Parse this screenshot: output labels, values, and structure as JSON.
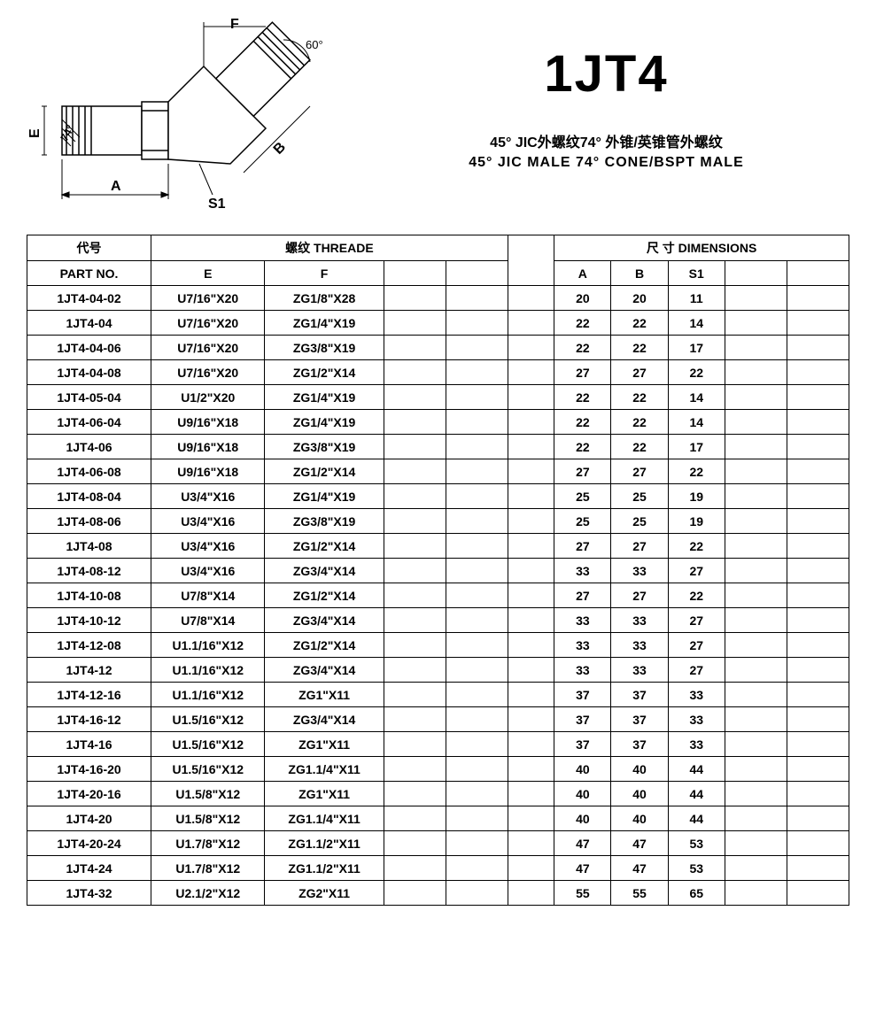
{
  "header": {
    "main_title": "1JT4",
    "subtitle_cn": "45° JIC外螺纹74° 外锥/英锥管外螺纹",
    "subtitle_en": "45° JIC MALE 74° CONE/BSPT MALE"
  },
  "diagram": {
    "labels": {
      "F": "F",
      "E": "E",
      "A": "A",
      "B": "B",
      "S1": "S1",
      "angle60": "60°",
      "angle74": "74°"
    },
    "line_color": "#000000"
  },
  "table": {
    "header1": {
      "part_cn": "代号",
      "thread": "螺纹 THREADE",
      "dimensions": "尺 寸 DIMENSIONS"
    },
    "header2": {
      "part_en": "PART NO.",
      "E": "E",
      "F": "F",
      "A": "A",
      "B": "B",
      "S1": "S1"
    },
    "rows": [
      {
        "part": "1JT4-04-02",
        "e": "U7/16\"X20",
        "f": "ZG1/8\"X28",
        "a": "20",
        "b": "20",
        "s1": "11"
      },
      {
        "part": "1JT4-04",
        "e": "U7/16\"X20",
        "f": "ZG1/4\"X19",
        "a": "22",
        "b": "22",
        "s1": "14"
      },
      {
        "part": "1JT4-04-06",
        "e": "U7/16\"X20",
        "f": "ZG3/8\"X19",
        "a": "22",
        "b": "22",
        "s1": "17"
      },
      {
        "part": "1JT4-04-08",
        "e": "U7/16\"X20",
        "f": "ZG1/2\"X14",
        "a": "27",
        "b": "27",
        "s1": "22"
      },
      {
        "part": "1JT4-05-04",
        "e": "U1/2\"X20",
        "f": "ZG1/4\"X19",
        "a": "22",
        "b": "22",
        "s1": "14"
      },
      {
        "part": "1JT4-06-04",
        "e": "U9/16\"X18",
        "f": "ZG1/4\"X19",
        "a": "22",
        "b": "22",
        "s1": "14"
      },
      {
        "part": "1JT4-06",
        "e": "U9/16\"X18",
        "f": "ZG3/8\"X19",
        "a": "22",
        "b": "22",
        "s1": "17"
      },
      {
        "part": "1JT4-06-08",
        "e": "U9/16\"X18",
        "f": "ZG1/2\"X14",
        "a": "27",
        "b": "27",
        "s1": "22"
      },
      {
        "part": "1JT4-08-04",
        "e": "U3/4\"X16",
        "f": "ZG1/4\"X19",
        "a": "25",
        "b": "25",
        "s1": "19"
      },
      {
        "part": "1JT4-08-06",
        "e": "U3/4\"X16",
        "f": "ZG3/8\"X19",
        "a": "25",
        "b": "25",
        "s1": "19"
      },
      {
        "part": "1JT4-08",
        "e": "U3/4\"X16",
        "f": "ZG1/2\"X14",
        "a": "27",
        "b": "27",
        "s1": "22"
      },
      {
        "part": "1JT4-08-12",
        "e": "U3/4\"X16",
        "f": "ZG3/4\"X14",
        "a": "33",
        "b": "33",
        "s1": "27"
      },
      {
        "part": "1JT4-10-08",
        "e": "U7/8\"X14",
        "f": "ZG1/2\"X14",
        "a": "27",
        "b": "27",
        "s1": "22"
      },
      {
        "part": "1JT4-10-12",
        "e": "U7/8\"X14",
        "f": "ZG3/4\"X14",
        "a": "33",
        "b": "33",
        "s1": "27"
      },
      {
        "part": "1JT4-12-08",
        "e": "U1.1/16\"X12",
        "f": "ZG1/2\"X14",
        "a": "33",
        "b": "33",
        "s1": "27"
      },
      {
        "part": "1JT4-12",
        "e": "U1.1/16\"X12",
        "f": "ZG3/4\"X14",
        "a": "33",
        "b": "33",
        "s1": "27"
      },
      {
        "part": "1JT4-12-16",
        "e": "U1.1/16\"X12",
        "f": "ZG1\"X11",
        "a": "37",
        "b": "37",
        "s1": "33"
      },
      {
        "part": "1JT4-16-12",
        "e": "U1.5/16\"X12",
        "f": "ZG3/4\"X14",
        "a": "37",
        "b": "37",
        "s1": "33"
      },
      {
        "part": "1JT4-16",
        "e": "U1.5/16\"X12",
        "f": "ZG1\"X11",
        "a": "37",
        "b": "37",
        "s1": "33"
      },
      {
        "part": "1JT4-16-20",
        "e": "U1.5/16\"X12",
        "f": "ZG1.1/4\"X11",
        "a": "40",
        "b": "40",
        "s1": "44"
      },
      {
        "part": "1JT4-20-16",
        "e": "U1.5/8\"X12",
        "f": "ZG1\"X11",
        "a": "40",
        "b": "40",
        "s1": "44"
      },
      {
        "part": "1JT4-20",
        "e": "U1.5/8\"X12",
        "f": "ZG1.1/4\"X11",
        "a": "40",
        "b": "40",
        "s1": "44"
      },
      {
        "part": "1JT4-20-24",
        "e": "U1.7/8\"X12",
        "f": "ZG1.1/2\"X11",
        "a": "47",
        "b": "47",
        "s1": "53"
      },
      {
        "part": "1JT4-24",
        "e": "U1.7/8\"X12",
        "f": "ZG1.1/2\"X11",
        "a": "47",
        "b": "47",
        "s1": "53"
      },
      {
        "part": "1JT4-32",
        "e": "U2.1/2\"X12",
        "f": "ZG2\"X11",
        "a": "55",
        "b": "55",
        "s1": "65"
      }
    ]
  }
}
